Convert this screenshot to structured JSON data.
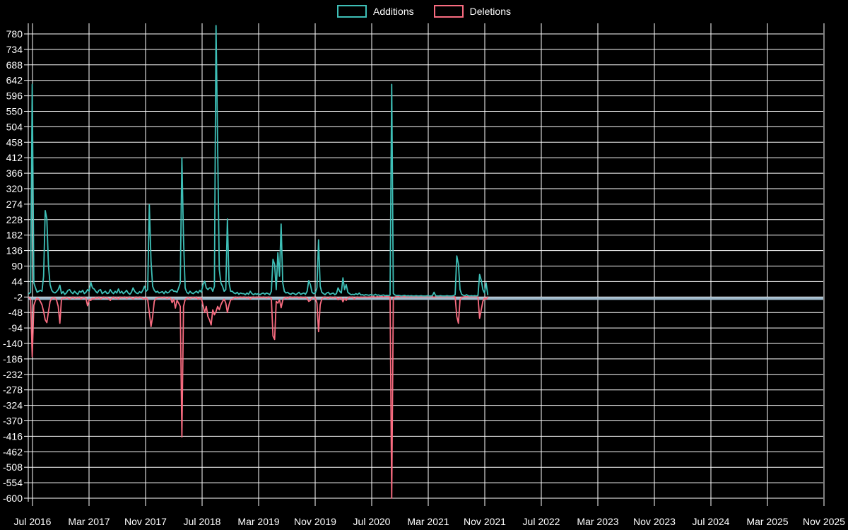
{
  "page": {
    "background": "#000000",
    "text_color": "#ffffff"
  },
  "legend": {
    "items": [
      {
        "label": "Additions",
        "color": "#3ebfb7"
      },
      {
        "label": "Deletions",
        "color": "#f96c80"
      }
    ]
  },
  "chart_data": {
    "type": "line",
    "title": "",
    "legend_position": "top-center",
    "grid": true,
    "grid_color": "#ffffff",
    "zero_line_color": "#9db8ca",
    "x_axis": {
      "unit": "week",
      "tick_labels": [
        "Jul 2016",
        "Mar 2017",
        "Nov 2017",
        "Jul 2018",
        "Mar 2019",
        "Nov 2019",
        "Jul 2020",
        "Mar 2021",
        "Nov 2021",
        "Jul 2022",
        "Mar 2023",
        "Nov 2023",
        "Jul 2024",
        "Mar 2025",
        "Nov 2025"
      ],
      "data_start": "Jun 2016",
      "data_end": "Nov 2021"
    },
    "y_axis": {
      "max": 780,
      "min": -600,
      "step": 46,
      "tick_labels": [
        780,
        734,
        688,
        642,
        596,
        550,
        504,
        458,
        412,
        366,
        320,
        274,
        228,
        182,
        136,
        90,
        44,
        -2,
        -48,
        -94,
        -140,
        -186,
        -232,
        -278,
        -324,
        -370,
        -416,
        -462,
        -508,
        -554,
        -600
      ]
    },
    "series": [
      {
        "name": "Additions",
        "color": "#3ebfb7",
        "weekly_values": [
          8,
          12,
          630,
          40,
          25,
          12,
          15,
          18,
          15,
          60,
          255,
          230,
          90,
          35,
          18,
          12,
          10,
          14,
          20,
          33,
          8,
          14,
          6,
          10,
          18,
          20,
          12,
          8,
          15,
          10,
          6,
          15,
          12,
          18,
          8,
          12,
          20,
          15,
          42,
          25,
          22,
          15,
          10,
          18,
          20,
          8,
          12,
          15,
          8,
          10,
          20,
          12,
          8,
          15,
          10,
          22,
          10,
          15,
          8,
          12,
          18,
          10,
          6,
          12,
          25,
          15,
          10,
          8,
          14,
          10,
          18,
          30,
          15,
          20,
          272,
          105,
          30,
          18,
          12,
          15,
          10,
          12,
          14,
          8,
          15,
          10,
          12,
          18,
          20,
          15,
          15,
          12,
          25,
          40,
          412,
          170,
          25,
          12,
          8,
          15,
          10,
          8,
          12,
          15,
          10,
          18,
          12,
          36,
          45,
          25,
          20,
          25,
          25,
          15,
          30,
          805,
          445,
          80,
          40,
          30,
          15,
          20,
          230,
          40,
          15,
          15,
          10,
          8,
          12,
          6,
          10,
          8,
          8,
          5,
          10,
          6,
          15,
          8,
          5,
          8,
          6,
          8,
          5,
          8,
          10,
          6,
          10,
          8,
          5,
          15,
          110,
          95,
          20,
          130,
          60,
          215,
          40,
          15,
          10,
          12,
          8,
          6,
          10,
          8,
          5,
          8,
          12,
          6,
          8,
          10,
          6,
          15,
          47,
          35,
          12,
          8,
          10,
          25,
          168,
          30,
          12,
          8,
          5,
          10,
          12,
          6,
          8,
          10,
          5,
          8,
          25,
          15,
          10,
          55,
          20,
          35,
          12,
          8,
          5,
          6,
          5,
          8,
          5,
          10,
          4,
          5,
          3,
          5,
          4,
          3,
          5,
          4,
          3,
          6,
          3,
          4,
          2,
          3,
          4,
          2,
          3,
          2,
          4,
          630,
          8,
          4,
          2,
          3,
          2,
          1,
          2,
          3,
          1,
          2,
          1,
          2,
          1,
          1,
          2,
          1,
          1,
          2,
          1,
          1,
          1,
          2,
          1,
          1,
          2,
          12,
          2,
          1,
          1,
          2,
          1,
          1,
          1,
          2,
          1,
          1,
          1,
          2,
          5,
          120,
          95,
          20,
          6,
          3,
          2,
          5,
          2,
          1,
          2,
          1,
          2,
          1,
          3,
          65,
          48,
          20,
          10,
          40,
          5
        ]
      },
      {
        "name": "Deletions",
        "color": "#f96c80",
        "weekly_values": [
          -3,
          -8,
          -180,
          -27,
          -12,
          -5,
          -8,
          -15,
          -25,
          -45,
          -70,
          -78,
          -45,
          -15,
          -6,
          -4,
          -5,
          -12,
          -30,
          -80,
          -8,
          -4,
          -6,
          -3,
          -5,
          -8,
          -4,
          -2,
          -6,
          -3,
          -5,
          -2,
          -8,
          -4,
          -3,
          -6,
          -28,
          -10,
          -12,
          -5,
          -8,
          -3,
          -6,
          -2,
          -8,
          -4,
          -2,
          -5,
          -3,
          -7,
          -12,
          -4,
          -2,
          -6,
          -3,
          -8,
          -2,
          -5,
          -3,
          -2,
          -6,
          -3,
          -2,
          -4,
          -8,
          -3,
          -2,
          -5,
          -2,
          -3,
          -6,
          -8,
          -4,
          -10,
          -48,
          -90,
          -60,
          -15,
          -6,
          -4,
          -3,
          -3,
          -5,
          -2,
          -4,
          -6,
          -3,
          -5,
          -19,
          -8,
          -35,
          -12,
          -20,
          -30,
          -418,
          -30,
          -10,
          -5,
          -3,
          -6,
          -4,
          -3,
          -5,
          -2,
          -8,
          -4,
          -6,
          -27,
          -48,
          -30,
          -60,
          -70,
          -85,
          -40,
          -55,
          -45,
          -30,
          -40,
          -25,
          -15,
          -8,
          -20,
          -48,
          -25,
          -10,
          -10,
          -4,
          -2,
          -5,
          -3,
          -2,
          -4,
          -2,
          -3,
          -5,
          -2,
          -8,
          -3,
          -2,
          -4,
          -2,
          -3,
          -2,
          -4,
          -2,
          -3,
          -5,
          -2,
          -3,
          -6,
          -118,
          -128,
          -15,
          -20,
          -10,
          -34,
          -12,
          -5,
          -3,
          -6,
          -2,
          -2,
          -4,
          -2,
          -3,
          -2,
          -5,
          -2,
          -3,
          -4,
          -2,
          -6,
          -15,
          -12,
          -5,
          -3,
          -6,
          -20,
          -105,
          -25,
          -8,
          -3,
          -2,
          -4,
          -6,
          -2,
          -3,
          -5,
          -2,
          -3,
          -10,
          -5,
          -4,
          -16,
          -6,
          -12,
          -4,
          -2,
          -3,
          -2,
          -8,
          -3,
          -2,
          -4,
          -2,
          -3,
          -2,
          -2,
          -3,
          -2,
          -2,
          -2,
          -1,
          -3,
          -1,
          -2,
          -1,
          -1,
          -2,
          -1,
          -1,
          -1,
          -2,
          -600,
          -5,
          -2,
          -1,
          -1,
          -2,
          -1,
          -1,
          -1,
          -1,
          -2,
          -1,
          -1,
          -1,
          -1,
          -1,
          -1,
          -1,
          -1,
          -1,
          -1,
          -1,
          -1,
          -1,
          -1,
          -1,
          -3,
          -1,
          -1,
          -1,
          -1,
          -1,
          -1,
          -1,
          -1,
          -1,
          -1,
          -1,
          -1,
          -2,
          -60,
          -80,
          -10,
          -3,
          -2,
          -1,
          -1,
          -1,
          -1,
          -1,
          -1,
          -1,
          -1,
          -2,
          -65,
          -40,
          -15,
          -5,
          -8,
          -2
        ]
      }
    ]
  }
}
